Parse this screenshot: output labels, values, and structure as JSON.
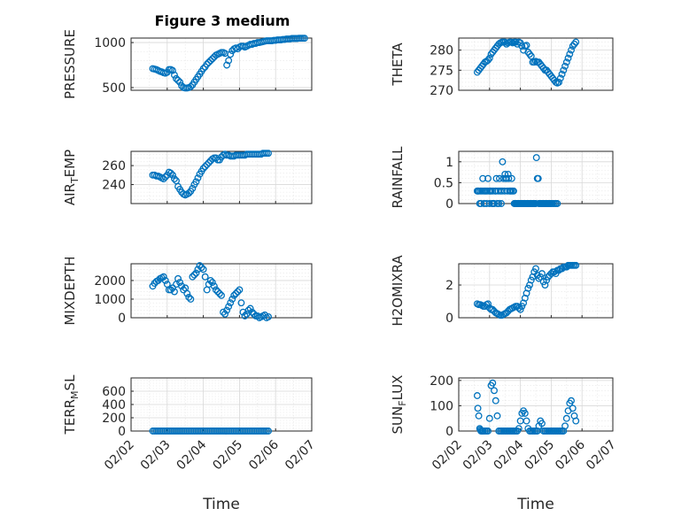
{
  "chart_data": [
    {
      "type": "scatter",
      "title": "Figure 3 medium",
      "ylabel": "PRESSURE",
      "xlabel": "",
      "ylim": [
        470,
        1050
      ],
      "yticks": [
        500,
        1000
      ],
      "xlim": [
        1,
        6
      ],
      "color": "#0072bd",
      "x": [
        1.6,
        1.65,
        1.7,
        1.75,
        1.8,
        1.85,
        1.9,
        1.95,
        2.0,
        2.05,
        2.1,
        2.15,
        2.2,
        2.25,
        2.3,
        2.35,
        2.4,
        2.45,
        2.5,
        2.55,
        2.6,
        2.65,
        2.7,
        2.75,
        2.8,
        2.85,
        2.9,
        2.95,
        3.0,
        3.05,
        3.1,
        3.15,
        3.2,
        3.25,
        3.3,
        3.35,
        3.4,
        3.45,
        3.5,
        3.55,
        3.6,
        3.65,
        3.7,
        3.75,
        3.8,
        3.85,
        3.9,
        3.95,
        4.0,
        4.05,
        4.1,
        4.15,
        4.2,
        4.25,
        4.3,
        4.35,
        4.4,
        4.45,
        4.5,
        4.55,
        4.6,
        4.65,
        4.7,
        4.75,
        4.8,
        4.85,
        4.9,
        4.95,
        5.0,
        5.05,
        5.1,
        5.15,
        5.2,
        5.25,
        5.3,
        5.35,
        5.4,
        5.45,
        5.5,
        5.55,
        5.6,
        5.65,
        5.7,
        5.75,
        5.8
      ],
      "y": [
        710,
        705,
        700,
        690,
        680,
        675,
        665,
        660,
        670,
        700,
        700,
        690,
        640,
        600,
        580,
        560,
        520,
        500,
        495,
        495,
        500,
        510,
        530,
        560,
        590,
        620,
        650,
        680,
        710,
        730,
        760,
        780,
        800,
        820,
        840,
        860,
        870,
        880,
        890,
        890,
        880,
        750,
        800,
        870,
        910,
        930,
        940,
        930,
        950,
        960,
        960,
        950,
        960,
        970,
        980,
        980,
        990,
        990,
        1000,
        1000,
        1005,
        1010,
        1015,
        1020,
        1020,
        1020,
        1020,
        1025,
        1025,
        1030,
        1030,
        1030,
        1035,
        1035,
        1040,
        1040,
        1040,
        1045,
        1045,
        1045,
        1045,
        1048,
        1048,
        1048,
        1048
      ]
    },
    {
      "type": "scatter",
      "ylabel": "THETA",
      "xlabel": "",
      "ylim": [
        270,
        283
      ],
      "yticks": [
        270,
        275,
        280
      ],
      "xlim": [
        1,
        6
      ],
      "color": "#0072bd",
      "x": [
        1.6,
        1.65,
        1.7,
        1.75,
        1.8,
        1.85,
        1.9,
        1.95,
        2.0,
        2.05,
        2.1,
        2.15,
        2.2,
        2.25,
        2.3,
        2.35,
        2.4,
        2.45,
        2.5,
        2.55,
        2.6,
        2.65,
        2.7,
        2.75,
        2.8,
        2.85,
        2.9,
        2.95,
        3.0,
        3.05,
        3.1,
        3.15,
        3.2,
        3.25,
        3.3,
        3.35,
        3.4,
        3.45,
        3.5,
        3.55,
        3.6,
        3.65,
        3.7,
        3.75,
        3.8,
        3.85,
        3.9,
        3.95,
        4.0,
        4.05,
        4.1,
        4.15,
        4.2,
        4.25,
        4.3,
        4.35,
        4.4,
        4.45,
        4.5,
        4.55,
        4.6,
        4.65,
        4.7,
        4.75,
        4.8
      ],
      "y": [
        274.5,
        275,
        275.5,
        276,
        276.5,
        277,
        277.2,
        277.5,
        278,
        279,
        279.5,
        280,
        280.5,
        281,
        281.5,
        281.8,
        282,
        282,
        282,
        281.5,
        281.8,
        282,
        282,
        281.8,
        282,
        282,
        281.5,
        282,
        281.8,
        281,
        280,
        281,
        281.2,
        279.5,
        279,
        278.5,
        277,
        277,
        277.2,
        277,
        277,
        276.5,
        276,
        275.5,
        275,
        275,
        274.5,
        274,
        273.5,
        273,
        272.5,
        272,
        271.8,
        272,
        273,
        274,
        275,
        276,
        277,
        278,
        279,
        280,
        281,
        281.5,
        282
      ]
    },
    {
      "type": "scatter",
      "ylabel": "AIR_TEMP",
      "xlabel": "",
      "ylim": [
        220,
        275
      ],
      "yticks": [
        240,
        260
      ],
      "xlim": [
        1,
        6
      ],
      "color": "#0072bd",
      "x": [
        1.6,
        1.65,
        1.7,
        1.75,
        1.8,
        1.85,
        1.9,
        1.95,
        2.0,
        2.05,
        2.1,
        2.15,
        2.2,
        2.25,
        2.3,
        2.35,
        2.4,
        2.45,
        2.5,
        2.55,
        2.6,
        2.65,
        2.7,
        2.75,
        2.8,
        2.85,
        2.9,
        2.95,
        3.0,
        3.05,
        3.1,
        3.15,
        3.2,
        3.25,
        3.3,
        3.35,
        3.4,
        3.45,
        3.5,
        3.55,
        3.6,
        3.65,
        3.7,
        3.75,
        3.8,
        3.85,
        3.9,
        3.95,
        4.0,
        4.05,
        4.1,
        4.15,
        4.2,
        4.25,
        4.3,
        4.35,
        4.4,
        4.45,
        4.5,
        4.55,
        4.6,
        4.65,
        4.7,
        4.75,
        4.8
      ],
      "y": [
        250,
        250,
        249,
        249,
        248,
        247,
        246,
        248,
        250,
        253,
        252,
        250,
        246,
        244,
        238,
        235,
        232,
        230,
        229,
        230,
        231,
        233,
        236,
        240,
        243,
        247,
        251,
        254,
        257,
        259,
        261,
        263,
        265,
        267,
        268,
        268,
        266,
        266,
        269,
        271,
        272,
        271,
        271,
        270,
        270,
        270,
        271,
        271,
        271,
        271,
        271,
        271,
        272,
        272,
        272,
        272,
        272,
        272,
        272,
        272,
        272,
        273,
        273,
        273,
        273
      ]
    },
    {
      "type": "scatter",
      "ylabel": "RAINFALL",
      "xlabel": "",
      "ylim": [
        0,
        1.25
      ],
      "yticks": [
        0,
        0.5,
        1
      ],
      "xlim": [
        1,
        6
      ],
      "color": "#0072bd",
      "x": [
        1.6,
        1.62,
        1.65,
        1.68,
        1.7,
        1.72,
        1.75,
        1.78,
        1.8,
        1.82,
        1.85,
        1.88,
        1.9,
        1.92,
        1.95,
        1.98,
        2.0,
        2.02,
        2.05,
        2.08,
        2.1,
        2.12,
        2.15,
        2.18,
        2.2,
        2.22,
        2.25,
        2.28,
        2.3,
        2.32,
        2.35,
        2.38,
        2.4,
        2.42,
        2.45,
        2.48,
        2.5,
        2.52,
        2.55,
        2.58,
        2.6,
        2.62,
        2.65,
        2.68,
        2.7,
        2.72,
        2.75,
        2.78,
        2.8,
        2.82,
        2.85,
        2.88,
        2.9,
        2.92,
        2.95,
        2.98,
        3.0,
        3.02,
        3.05,
        3.08,
        3.1,
        3.12,
        3.15,
        3.18,
        3.2,
        3.22,
        3.25,
        3.28,
        3.3,
        3.32,
        3.35,
        3.38,
        3.4,
        3.42,
        3.45,
        3.48,
        3.5,
        3.52,
        3.55,
        3.58,
        3.6,
        3.62,
        3.65,
        3.68,
        3.7,
        3.72,
        3.75,
        3.78,
        3.8,
        3.82,
        3.85,
        3.88,
        3.9,
        3.92,
        3.95,
        3.98,
        4.0,
        4.05,
        4.1,
        4.15,
        4.2
      ],
      "y": [
        0.3,
        0.3,
        0.3,
        0,
        0.3,
        0,
        0.3,
        0.6,
        0.3,
        0,
        0.3,
        0.3,
        0,
        0.3,
        0.6,
        0.3,
        0,
        0.3,
        0.3,
        0,
        0.3,
        0,
        0,
        0.3,
        0.3,
        0.6,
        0,
        0.3,
        0,
        0.6,
        0.3,
        0,
        0.3,
        1,
        0.6,
        0.3,
        0.7,
        0.6,
        0.6,
        0.3,
        0.7,
        0.6,
        0.3,
        0.3,
        0.3,
        0.6,
        0.3,
        0.3,
        0,
        0,
        0,
        0,
        0,
        0,
        0,
        0,
        0,
        0,
        0,
        0,
        0,
        0,
        0,
        0,
        0,
        0,
        0,
        0,
        0,
        0,
        0,
        0,
        0,
        0,
        0,
        0,
        0,
        1.1,
        0.6,
        0.6,
        0,
        0,
        0,
        0,
        0,
        0,
        0,
        0,
        0,
        0,
        0,
        0,
        0,
        0,
        0,
        0,
        0,
        0,
        0,
        0,
        0
      ]
    },
    {
      "type": "scatter",
      "ylabel": "MIXDEPTH",
      "xlabel": "",
      "ylim": [
        0,
        2900
      ],
      "yticks": [
        0,
        1000,
        2000
      ],
      "xlim": [
        1,
        6
      ],
      "color": "#0072bd",
      "x": [
        1.6,
        1.65,
        1.7,
        1.75,
        1.8,
        1.85,
        1.9,
        1.95,
        2.0,
        2.05,
        2.1,
        2.15,
        2.2,
        2.25,
        2.3,
        2.35,
        2.4,
        2.45,
        2.5,
        2.55,
        2.6,
        2.65,
        2.7,
        2.75,
        2.8,
        2.85,
        2.9,
        2.95,
        3.0,
        3.05,
        3.1,
        3.15,
        3.2,
        3.25,
        3.3,
        3.35,
        3.4,
        3.45,
        3.5,
        3.55,
        3.6,
        3.65,
        3.7,
        3.75,
        3.8,
        3.85,
        3.9,
        3.95,
        4.0,
        4.05,
        4.1,
        4.15,
        4.2,
        4.25,
        4.3,
        4.35,
        4.4,
        4.45,
        4.5,
        4.55,
        4.6,
        4.65,
        4.7,
        4.75,
        4.8
      ],
      "y": [
        1700,
        1850,
        1950,
        2000,
        2100,
        2150,
        2200,
        2000,
        1800,
        1500,
        1500,
        1600,
        1400,
        1800,
        2100,
        1900,
        1700,
        1500,
        1600,
        1300,
        1100,
        1000,
        2200,
        2300,
        2400,
        2600,
        2800,
        2700,
        2600,
        2200,
        1500,
        1800,
        2000,
        1900,
        1700,
        1500,
        1400,
        1300,
        1200,
        300,
        200,
        400,
        600,
        800,
        1000,
        1200,
        1300,
        1400,
        1500,
        800,
        300,
        100,
        200,
        400,
        500,
        300,
        200,
        100,
        100,
        0,
        50,
        100,
        150,
        0,
        50
      ]
    },
    {
      "type": "scatter",
      "ylabel": "H2OMIXRA",
      "xlabel": "",
      "ylim": [
        0,
        3.3
      ],
      "yticks": [
        0,
        2
      ],
      "xlim": [
        1,
        6
      ],
      "color": "#0072bd",
      "x": [
        1.6,
        1.65,
        1.7,
        1.75,
        1.8,
        1.85,
        1.9,
        1.95,
        2.0,
        2.05,
        2.1,
        2.15,
        2.2,
        2.25,
        2.3,
        2.35,
        2.4,
        2.45,
        2.5,
        2.55,
        2.6,
        2.65,
        2.7,
        2.75,
        2.8,
        2.85,
        2.9,
        2.95,
        3.0,
        3.05,
        3.1,
        3.15,
        3.2,
        3.25,
        3.3,
        3.35,
        3.4,
        3.45,
        3.5,
        3.55,
        3.6,
        3.65,
        3.7,
        3.75,
        3.8,
        3.85,
        3.9,
        3.95,
        4.0,
        4.05,
        4.1,
        4.15,
        4.2,
        4.25,
        4.3,
        4.35,
        4.4,
        4.45,
        4.5,
        4.55,
        4.6,
        4.65,
        4.7,
        4.75,
        4.8
      ],
      "y": [
        0.85,
        0.8,
        0.8,
        0.75,
        0.7,
        0.7,
        0.8,
        0.85,
        0.6,
        0.5,
        0.5,
        0.4,
        0.3,
        0.25,
        0.2,
        0.15,
        0.15,
        0.2,
        0.25,
        0.3,
        0.4,
        0.5,
        0.55,
        0.6,
        0.65,
        0.7,
        0.7,
        0.6,
        0.5,
        0.7,
        0.9,
        1.2,
        1.5,
        1.8,
        2.0,
        2.3,
        2.5,
        2.8,
        3.0,
        2.6,
        2.4,
        2.5,
        2.7,
        2.2,
        2.0,
        2.3,
        2.5,
        2.6,
        2.7,
        2.8,
        2.8,
        2.7,
        2.9,
        2.9,
        3.0,
        3.0,
        3.1,
        3.1,
        3.1,
        3.2,
        3.2,
        3.2,
        3.2,
        3.2,
        3.2
      ]
    },
    {
      "type": "scatter",
      "ylabel": "TERR_MSL",
      "xlabel": "Time",
      "ylim": [
        0,
        800
      ],
      "yticks": [
        0,
        200,
        400,
        600
      ],
      "xlim": [
        1,
        6
      ],
      "xticklabels": [
        "02/02",
        "02/03",
        "02/04",
        "02/05",
        "02/06",
        "02/07"
      ],
      "color": "#0072bd",
      "x": [
        1.6,
        1.65,
        1.7,
        1.75,
        1.8,
        1.85,
        1.9,
        1.95,
        2.0,
        2.05,
        2.1,
        2.15,
        2.2,
        2.25,
        2.3,
        2.35,
        2.4,
        2.45,
        2.5,
        2.55,
        2.6,
        2.65,
        2.7,
        2.75,
        2.8,
        2.85,
        2.9,
        2.95,
        3.0,
        3.05,
        3.1,
        3.15,
        3.2,
        3.25,
        3.3,
        3.35,
        3.4,
        3.45,
        3.5,
        3.55,
        3.6,
        3.65,
        3.7,
        3.75,
        3.8,
        3.85,
        3.9,
        3.95,
        4.0,
        4.05,
        4.1,
        4.15,
        4.2,
        4.25,
        4.3,
        4.35,
        4.4,
        4.45,
        4.5,
        4.55,
        4.6,
        4.65,
        4.7,
        4.75,
        4.8
      ],
      "y": [
        0,
        0,
        0,
        0,
        0,
        0,
        0,
        0,
        0,
        0,
        0,
        0,
        0,
        0,
        0,
        0,
        0,
        0,
        0,
        0,
        0,
        0,
        0,
        0,
        0,
        0,
        0,
        0,
        0,
        0,
        0,
        0,
        0,
        0,
        0,
        0,
        0,
        0,
        0,
        0,
        0,
        0,
        0,
        0,
        0,
        0,
        0,
        0,
        0,
        0,
        0,
        0,
        0,
        0,
        0,
        0,
        0,
        0,
        0,
        0,
        0,
        0,
        0,
        0,
        0
      ]
    },
    {
      "type": "scatter",
      "ylabel": "SUN_FLUX",
      "xlabel": "Time",
      "ylim": [
        0,
        210
      ],
      "yticks": [
        0,
        100,
        200
      ],
      "xlim": [
        1,
        6
      ],
      "xticklabels": [
        "02/02",
        "02/03",
        "02/04",
        "02/05",
        "02/06",
        "02/07"
      ],
      "color": "#0072bd",
      "x": [
        1.6,
        1.62,
        1.65,
        1.68,
        1.7,
        1.72,
        1.75,
        1.78,
        1.8,
        1.85,
        1.9,
        1.95,
        2.0,
        2.05,
        2.1,
        2.15,
        2.2,
        2.25,
        2.3,
        2.35,
        2.4,
        2.45,
        2.5,
        2.55,
        2.6,
        2.65,
        2.7,
        2.75,
        2.8,
        2.85,
        2.9,
        2.95,
        3.0,
        3.05,
        3.1,
        3.15,
        3.2,
        3.25,
        3.3,
        3.35,
        3.4,
        3.45,
        3.5,
        3.55,
        3.6,
        3.65,
        3.7,
        3.75,
        3.8,
        3.85,
        3.9,
        3.95,
        4.0,
        4.05,
        4.1,
        4.15,
        4.2,
        4.25,
        4.3,
        4.35,
        4.4,
        4.45,
        4.5,
        4.55,
        4.6,
        4.65,
        4.7,
        4.75,
        4.8
      ],
      "y": [
        140,
        90,
        60,
        10,
        5,
        0,
        0,
        0,
        0,
        0,
        0,
        0,
        50,
        180,
        190,
        160,
        120,
        60,
        0,
        0,
        0,
        0,
        0,
        0,
        0,
        0,
        0,
        0,
        0,
        0,
        0,
        10,
        40,
        70,
        80,
        70,
        40,
        10,
        0,
        0,
        0,
        0,
        0,
        0,
        20,
        40,
        30,
        0,
        0,
        0,
        0,
        0,
        0,
        0,
        0,
        0,
        0,
        0,
        0,
        0,
        0,
        20,
        50,
        80,
        110,
        120,
        90,
        60,
        40
      ]
    }
  ]
}
